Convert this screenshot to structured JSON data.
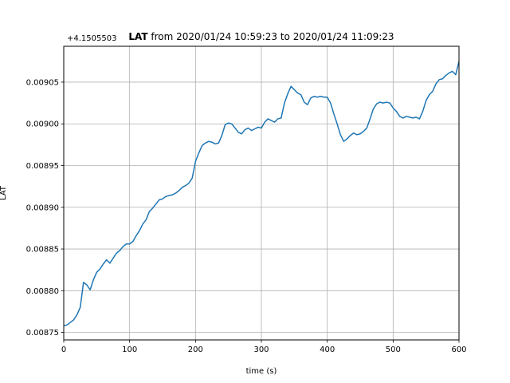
{
  "chart_data": {
    "type": "line",
    "title_bold": "LAT",
    "title_rest": " from 2020/01/24 10:59:23 to 2020/01/24 11:09:23",
    "offset_label": "+4.1505503",
    "xlabel": "time (s)",
    "ylabel": "LAT",
    "xlim": [
      0,
      600
    ],
    "ylim": [
      0.008741,
      0.009093
    ],
    "grid": true,
    "line_color": "#1f77b4",
    "x_ticks": [
      0,
      100,
      200,
      300,
      400,
      500,
      600
    ],
    "x_tick_labels": [
      "0",
      "100",
      "200",
      "300",
      "400",
      "500",
      "600"
    ],
    "y_ticks": [
      0.00875,
      0.0088,
      0.00885,
      0.0089,
      0.00895,
      0.009,
      0.00905
    ],
    "y_tick_labels": [
      "0.00875",
      "0.00880",
      "0.00885",
      "0.00890",
      "0.00895",
      "0.00900",
      "0.00905"
    ],
    "series": [
      {
        "x": [
          0,
          5,
          10,
          15,
          20,
          25,
          30,
          35,
          40,
          45,
          50,
          55,
          60,
          65,
          70,
          75,
          80,
          85,
          90,
          95,
          100,
          105,
          110,
          115,
          120,
          125,
          130,
          135,
          140,
          145,
          150,
          155,
          160,
          165,
          170,
          175,
          180,
          185,
          190,
          195,
          200,
          205,
          210,
          215,
          220,
          225,
          230,
          235,
          240,
          245,
          250,
          255,
          260,
          265,
          270,
          275,
          280,
          285,
          290,
          295,
          300,
          305,
          310,
          315,
          320,
          325,
          330,
          335,
          340,
          345,
          350,
          355,
          360,
          365,
          370,
          375,
          380,
          385,
          390,
          395,
          400,
          405,
          410,
          415,
          420,
          425,
          430,
          435,
          440,
          445,
          450,
          455,
          460,
          465,
          470,
          475,
          480,
          485,
          490,
          495,
          500,
          505,
          510,
          515,
          520,
          525,
          530,
          535,
          540,
          545,
          550,
          555,
          560,
          565,
          570,
          575,
          580,
          585,
          590,
          595,
          600
        ],
        "values": [
          0.008758,
          0.008759,
          0.008762,
          0.008765,
          0.008771,
          0.00878,
          0.00881,
          0.008807,
          0.008801,
          0.008813,
          0.008822,
          0.008826,
          0.008832,
          0.008837,
          0.008833,
          0.008839,
          0.008845,
          0.008848,
          0.008853,
          0.008856,
          0.008856,
          0.008859,
          0.008866,
          0.008872,
          0.00888,
          0.008885,
          0.008895,
          0.008899,
          0.008904,
          0.008909,
          0.00891,
          0.008913,
          0.008914,
          0.008915,
          0.008917,
          0.00892,
          0.008924,
          0.008926,
          0.008929,
          0.008935,
          0.008955,
          0.008965,
          0.008974,
          0.008977,
          0.008979,
          0.008978,
          0.008976,
          0.008977,
          0.008986,
          0.008999,
          0.009001,
          0.009,
          0.008995,
          0.00899,
          0.008988,
          0.008993,
          0.008995,
          0.008992,
          0.008994,
          0.008996,
          0.008995,
          0.009002,
          0.009006,
          0.009004,
          0.009002,
          0.009006,
          0.009007,
          0.009025,
          0.009036,
          0.009045,
          0.009041,
          0.009037,
          0.009035,
          0.009026,
          0.009023,
          0.009031,
          0.009033,
          0.009032,
          0.009033,
          0.009032,
          0.009032,
          0.009025,
          0.009012,
          0.009,
          0.008987,
          0.008979,
          0.008982,
          0.008986,
          0.008989,
          0.008987,
          0.008988,
          0.008991,
          0.008995,
          0.009006,
          0.009018,
          0.009024,
          0.009026,
          0.009025,
          0.009026,
          0.009025,
          0.009019,
          0.009015,
          0.009009,
          0.009007,
          0.009009,
          0.009008,
          0.009007,
          0.009008,
          0.009006,
          0.009015,
          0.009028,
          0.009035,
          0.009039,
          0.009048,
          0.009053,
          0.009054,
          0.009058,
          0.009061,
          0.009063,
          0.009059,
          0.009075
        ]
      }
    ]
  }
}
